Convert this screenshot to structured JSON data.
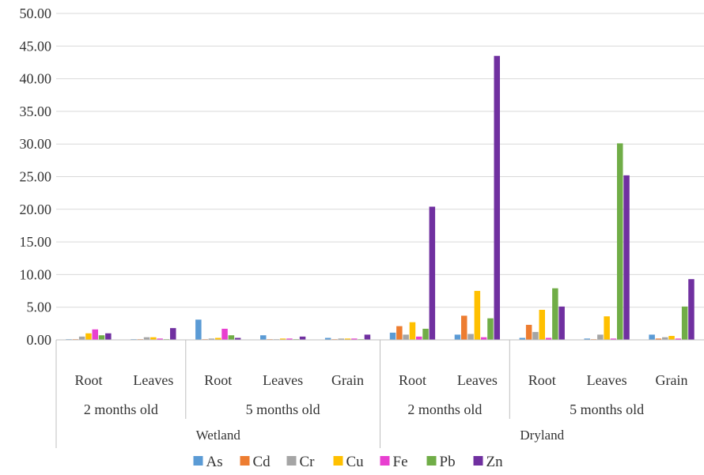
{
  "chart_data": {
    "type": "bar",
    "ylim": [
      0,
      50
    ],
    "yticks": [
      "0.00",
      "5.00",
      "10.00",
      "15.00",
      "20.00",
      "25.00",
      "30.00",
      "35.00",
      "40.00",
      "45.00",
      "50.00"
    ],
    "grid": true,
    "legend_position": "bottom",
    "categories": [
      {
        "label": "Root",
        "age": "2 months old",
        "env": "Wetland"
      },
      {
        "label": "Leaves",
        "age": "2 months old",
        "env": "Wetland"
      },
      {
        "label": "Root",
        "age": "5 months old",
        "env": "Wetland"
      },
      {
        "label": "Leaves",
        "age": "5 months old",
        "env": "Wetland"
      },
      {
        "label": "Grain",
        "age": "5 months old",
        "env": "Wetland"
      },
      {
        "label": "Root",
        "age": "2 months old",
        "env": "Dryland"
      },
      {
        "label": "Leaves",
        "age": "2 months old",
        "env": "Dryland"
      },
      {
        "label": "Root",
        "age": "5 months old",
        "env": "Dryland"
      },
      {
        "label": "Leaves",
        "age": "5 months old",
        "env": "Dryland"
      },
      {
        "label": "Grain",
        "age": "5 months old",
        "env": "Dryland"
      }
    ],
    "age_groups": [
      {
        "label": "2 months old",
        "start": 0,
        "end": 1
      },
      {
        "label": "5 months old",
        "start": 2,
        "end": 4
      },
      {
        "label": "2 months old",
        "start": 5,
        "end": 6
      },
      {
        "label": "5 months old",
        "start": 7,
        "end": 9
      }
    ],
    "env_groups": [
      {
        "label": "Wetland",
        "start": 0,
        "end": 4
      },
      {
        "label": "Dryland",
        "start": 5,
        "end": 9
      }
    ],
    "series": [
      {
        "name": "As",
        "color": "#5B9BD5",
        "values": [
          0.1,
          0.1,
          3.1,
          0.7,
          0.3,
          1.1,
          0.8,
          0.3,
          0.2,
          0.8
        ]
      },
      {
        "name": "Cd",
        "color": "#ED7D31",
        "values": [
          0.1,
          0.1,
          0.1,
          0.1,
          0.1,
          2.1,
          3.7,
          2.3,
          0.1,
          0.2
        ]
      },
      {
        "name": "Cr",
        "color": "#A5A5A5",
        "values": [
          0.5,
          0.4,
          0.2,
          0.1,
          0.2,
          0.8,
          0.9,
          1.2,
          0.8,
          0.4
        ]
      },
      {
        "name": "Cu",
        "color": "#FFC000",
        "values": [
          1.0,
          0.4,
          0.3,
          0.2,
          0.2,
          2.7,
          7.5,
          4.6,
          3.6,
          0.6
        ]
      },
      {
        "name": "Fe",
        "color": "#E83FD0",
        "values": [
          1.6,
          0.2,
          1.7,
          0.2,
          0.2,
          0.5,
          0.4,
          0.3,
          0.2,
          0.2
        ]
      },
      {
        "name": "Pb",
        "color": "#70AD47",
        "values": [
          0.7,
          0.1,
          0.7,
          0.1,
          0.1,
          1.7,
          3.3,
          7.9,
          30.1,
          5.1
        ]
      },
      {
        "name": "Zn",
        "color": "#7030A0",
        "values": [
          1.0,
          1.8,
          0.3,
          0.5,
          0.8,
          20.4,
          43.5,
          5.1,
          25.2,
          9.3
        ]
      }
    ]
  }
}
